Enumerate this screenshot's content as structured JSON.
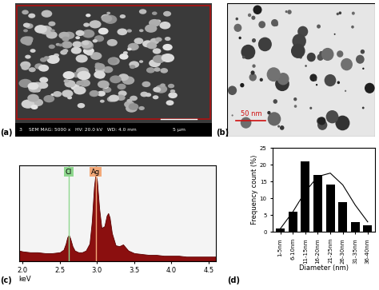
{
  "panel_labels": [
    "(a)",
    "(b)",
    "(c)",
    "(d)"
  ],
  "sem_image": {
    "info": "SEM MAG: 5000 x   HV: 20.0 kV   WD: 4.0 mm",
    "scale_bar": "5 µm",
    "index": "3"
  },
  "tem_image": {
    "scale_bar": "50 nm"
  },
  "chart_data": [
    {
      "type": "area",
      "x": [
        1.95,
        2.0,
        2.1,
        2.2,
        2.3,
        2.4,
        2.5,
        2.55,
        2.58,
        2.6,
        2.62,
        2.64,
        2.67,
        2.7,
        2.75,
        2.8,
        2.85,
        2.9,
        2.93,
        2.96,
        2.98,
        3.0,
        3.03,
        3.06,
        3.1,
        3.13,
        3.15,
        3.17,
        3.2,
        3.25,
        3.3,
        3.35,
        3.38,
        3.42,
        3.5,
        3.6,
        3.7,
        3.8,
        3.9,
        4.0,
        4.1,
        4.2,
        4.3,
        4.4,
        4.5,
        4.6
      ],
      "values": [
        12,
        11,
        10,
        10,
        9,
        9,
        10,
        13,
        20,
        27,
        30,
        26,
        17,
        12,
        10,
        10,
        12,
        20,
        45,
        85,
        100,
        92,
        60,
        38,
        40,
        52,
        55,
        50,
        32,
        18,
        17,
        19,
        16,
        12,
        9,
        8,
        7,
        7,
        6,
        6,
        6,
        5,
        5,
        5,
        5,
        5
      ],
      "color": "#8b0f0f",
      "xlabel": "keV",
      "xlim": [
        1.95,
        4.6
      ],
      "xticks": [
        2.0,
        2.5,
        3.0,
        3.5,
        4.0,
        4.5
      ],
      "ylim": [
        0,
        110
      ],
      "tick_labels": "x",
      "element_lines": [
        {
          "label": "Cl",
          "x": 2.62,
          "color": "#8fd88f"
        },
        {
          "label": "Ag",
          "x": 2.98,
          "color": "#f2a878"
        }
      ]
    },
    {
      "type": "bar",
      "categories": [
        "1-5nm",
        "6-10nm",
        "11-15nm",
        "16-20nm",
        "21-25nm",
        "26-30nm",
        "31-35nm",
        "36-40nm"
      ],
      "values": [
        1,
        6,
        21,
        17,
        14,
        9,
        3,
        2
      ],
      "fit": [
        1,
        6,
        12,
        16.5,
        17.5,
        14,
        8,
        3
      ],
      "color": "#000000",
      "xlabel": "Diameter (nm)",
      "ylabel": "Frequency count (%)",
      "ylim": [
        0,
        25
      ],
      "yticks": [
        0,
        5,
        10,
        15,
        20,
        25
      ]
    }
  ]
}
